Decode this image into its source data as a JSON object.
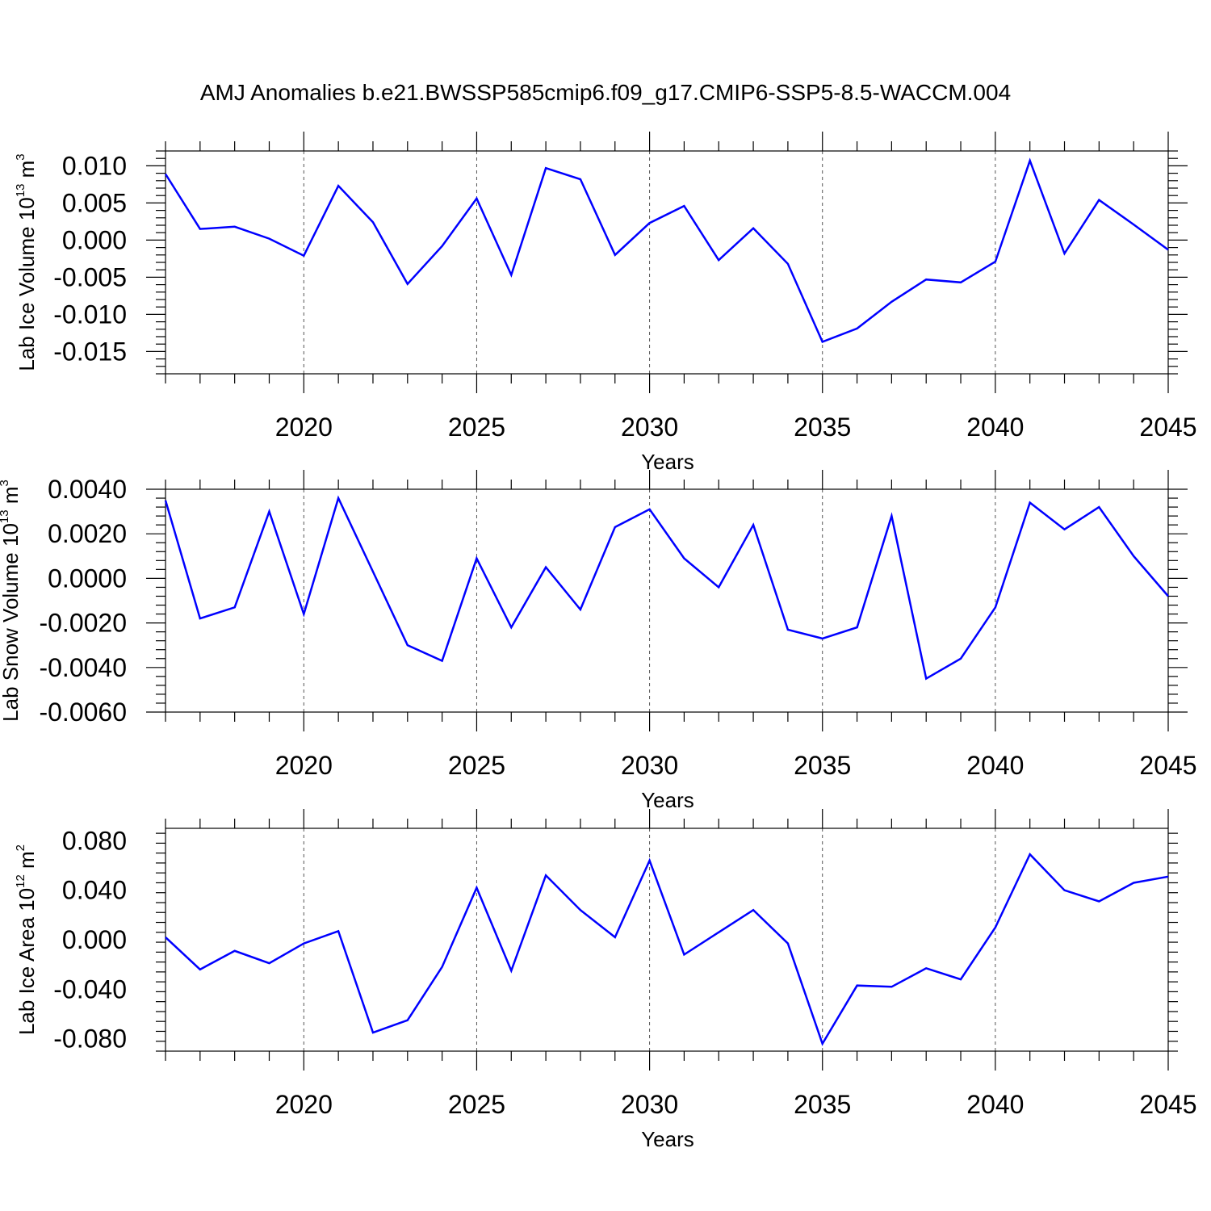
{
  "title": "AMJ Anomalies b.e21.BWSSP585cmip6.f09_g17.CMIP6-SSP5-8.5-WACCM.004",
  "chart_data": [
    {
      "type": "line",
      "title": "AMJ Anomalies b.e21.BWSSP585cmip6.f09_g17.CMIP6-SSP5-8.5-WACCM.004",
      "xlabel": "Years",
      "ylabel_main": "Lab Ice Volume 10",
      "ylabel_exp": "13",
      "ylabel_unit": "m",
      "ylabel_unit_exp": "3",
      "xlim": [
        2016,
        2045
      ],
      "ylim": [
        -0.018,
        0.012
      ],
      "xticks": [
        2020,
        2025,
        2030,
        2035,
        2040,
        2045
      ],
      "xtick_labels": [
        "2020",
        "2025",
        "2030",
        "2035",
        "2040",
        "2045"
      ],
      "yticks": [
        0.01,
        0.005,
        0.0,
        -0.005,
        -0.01,
        -0.015
      ],
      "ytick_labels": [
        "0.010",
        "0.005",
        "0.000",
        "-0.005",
        "-0.010",
        "-0.015"
      ],
      "x": [
        2016,
        2017,
        2018,
        2019,
        2020,
        2021,
        2022,
        2023,
        2024,
        2025,
        2026,
        2027,
        2028,
        2029,
        2030,
        2031,
        2032,
        2033,
        2034,
        2035,
        2036,
        2037,
        2038,
        2039,
        2040,
        2041,
        2042,
        2043,
        2044,
        2045
      ],
      "series": [
        {
          "name": "Lab Ice Volume",
          "color": "#0000ff",
          "values": [
            0.0089,
            0.0015,
            0.0018,
            0.0002,
            -0.0021,
            0.0073,
            0.0024,
            -0.0059,
            -0.0008,
            0.0056,
            -0.0047,
            0.0097,
            0.0082,
            -0.002,
            0.0023,
            0.0046,
            -0.0027,
            0.0016,
            -0.0032,
            -0.0137,
            -0.0119,
            -0.0083,
            -0.0053,
            -0.0057,
            -0.0029,
            0.0107,
            -0.0018,
            0.0054,
            0.0021,
            -0.0013
          ]
        }
      ]
    },
    {
      "type": "line",
      "xlabel": "Years",
      "ylabel_main": "Lab Snow Volume 10",
      "ylabel_exp": "13",
      "ylabel_unit": "m",
      "ylabel_unit_exp": "3",
      "xlim": [
        2016,
        2045
      ],
      "ylim": [
        -0.006,
        0.004
      ],
      "xticks": [
        2020,
        2025,
        2030,
        2035,
        2040,
        2045
      ],
      "xtick_labels": [
        "2020",
        "2025",
        "2030",
        "2035",
        "2040",
        "2045"
      ],
      "yticks": [
        0.004,
        0.002,
        0.0,
        -0.002,
        -0.004,
        -0.006
      ],
      "ytick_labels": [
        "0.0040",
        "0.0020",
        "0.0000",
        "-0.0020",
        "-0.0040",
        "-0.0060"
      ],
      "x": [
        2016,
        2017,
        2018,
        2019,
        2020,
        2021,
        2022,
        2023,
        2024,
        2025,
        2026,
        2027,
        2028,
        2029,
        2030,
        2031,
        2032,
        2033,
        2034,
        2035,
        2036,
        2037,
        2038,
        2039,
        2040,
        2041,
        2042,
        2043,
        2044,
        2045
      ],
      "series": [
        {
          "name": "Lab Snow Volume",
          "color": "#0000ff",
          "values": [
            0.0035,
            -0.0018,
            -0.0013,
            0.003,
            -0.0016,
            0.0036,
            0.0003,
            -0.003,
            -0.0037,
            0.0009,
            -0.0022,
            0.0005,
            -0.0014,
            0.0023,
            0.0031,
            0.0009,
            -0.0004,
            0.0024,
            -0.0023,
            -0.0027,
            -0.0022,
            0.0028,
            -0.0045,
            -0.0036,
            -0.0013,
            0.0034,
            0.0022,
            0.0032,
            0.001,
            -0.0008
          ]
        }
      ]
    },
    {
      "type": "line",
      "xlabel": "Years",
      "ylabel_main": "Lab Ice Area 10",
      "ylabel_exp": "12",
      "ylabel_unit": "m",
      "ylabel_unit_exp": "2",
      "xlim": [
        2016,
        2045
      ],
      "ylim": [
        -0.09,
        0.09
      ],
      "xticks": [
        2020,
        2025,
        2030,
        2035,
        2040,
        2045
      ],
      "xtick_labels": [
        "2020",
        "2025",
        "2030",
        "2035",
        "2040",
        "2045"
      ],
      "yticks": [
        0.08,
        0.04,
        0.0,
        -0.04,
        -0.08
      ],
      "ytick_labels": [
        "0.080",
        "0.040",
        "0.000",
        "-0.040",
        "-0.080"
      ],
      "x": [
        2016,
        2017,
        2018,
        2019,
        2020,
        2021,
        2022,
        2023,
        2024,
        2025,
        2026,
        2027,
        2028,
        2029,
        2030,
        2031,
        2032,
        2033,
        2034,
        2035,
        2036,
        2037,
        2038,
        2039,
        2040,
        2041,
        2042,
        2043,
        2044,
        2045
      ],
      "series": [
        {
          "name": "Lab Ice Area",
          "color": "#0000ff",
          "values": [
            0.002,
            -0.024,
            -0.009,
            -0.019,
            -0.003,
            0.007,
            -0.075,
            -0.065,
            -0.022,
            0.042,
            -0.025,
            0.052,
            0.024,
            0.002,
            0.064,
            -0.012,
            0.006,
            0.024,
            -0.003,
            -0.084,
            -0.037,
            -0.038,
            -0.023,
            -0.032,
            0.01,
            0.069,
            0.04,
            0.031,
            0.046,
            0.051
          ]
        }
      ]
    }
  ]
}
